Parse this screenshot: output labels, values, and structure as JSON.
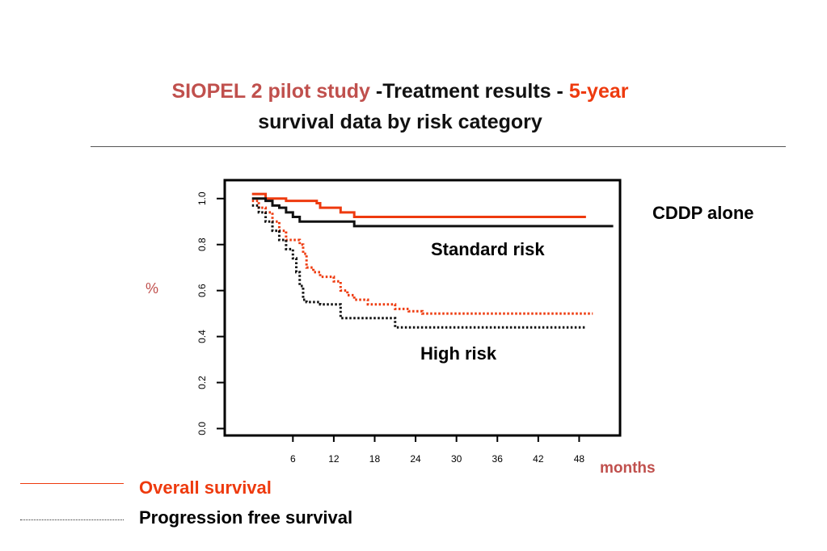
{
  "title": {
    "line1_part1": "SIOPEL 2 pilot study",
    "line1_part2": " -Treatment results - ",
    "line1_part3": "5-year",
    "line2": "survival data by risk category"
  },
  "annotations": {
    "cddp": "CDDP alone",
    "standard_risk": "Standard risk",
    "high_risk": "High risk"
  },
  "ylabel": "%",
  "xlabel": "months",
  "legend": {
    "overall_survival": "Overall survival",
    "progression_free_survival": "Progression free survival"
  },
  "colors": {
    "overall_survival": "#ee3a0e",
    "progression_free_survival": "#111111",
    "title_accent": "#c0504d"
  },
  "chart_data": {
    "type": "line",
    "step": true,
    "xlim": [
      -4,
      54
    ],
    "ylim": [
      -0.03,
      1.08
    ],
    "x_ticks": [
      6,
      12,
      18,
      24,
      30,
      36,
      42,
      48
    ],
    "y_ticks": [
      "0.0",
      "0.2",
      "0.4",
      "0.6",
      "0.8",
      "1.0"
    ],
    "y_tick_values": [
      0,
      0.2,
      0.4,
      0.6,
      0.8,
      1.0
    ],
    "series": [
      {
        "group": "Standard risk",
        "measure": "Overall survival",
        "style": "solid",
        "color": "#ee3a0e",
        "x": [
          0,
          2,
          4,
          5,
          6,
          9.5,
          10,
          13,
          15,
          49
        ],
        "y": [
          1.02,
          1.0,
          1.0,
          0.99,
          0.99,
          0.98,
          0.96,
          0.94,
          0.92,
          0.92
        ]
      },
      {
        "group": "Standard risk",
        "measure": "Progression free survival",
        "style": "solid",
        "color": "#111111",
        "x": [
          0,
          2,
          3,
          4,
          5,
          6,
          7,
          14,
          15,
          53
        ],
        "y": [
          1.0,
          0.99,
          0.97,
          0.96,
          0.94,
          0.92,
          0.9,
          0.9,
          0.88,
          0.88
        ]
      },
      {
        "group": "High risk",
        "measure": "Overall survival",
        "style": "dotted",
        "color": "#ee3a0e",
        "x": [
          0,
          1,
          2,
          3,
          4,
          5,
          7,
          7.5,
          8,
          9,
          10,
          12,
          13,
          14,
          15,
          17,
          19,
          21,
          22,
          23,
          25,
          50
        ],
        "y": [
          0.99,
          0.96,
          0.94,
          0.9,
          0.86,
          0.82,
          0.8,
          0.76,
          0.7,
          0.68,
          0.66,
          0.64,
          0.6,
          0.58,
          0.56,
          0.54,
          0.54,
          0.52,
          0.52,
          0.51,
          0.5,
          0.5
        ]
      },
      {
        "group": "High risk",
        "measure": "Progression free survival",
        "style": "dotted",
        "color": "#111111",
        "x": [
          0,
          1,
          2,
          3,
          4,
          5,
          6,
          6.5,
          7,
          7.5,
          8,
          10,
          12,
          13,
          20,
          21,
          49
        ],
        "y": [
          0.97,
          0.94,
          0.9,
          0.86,
          0.82,
          0.78,
          0.74,
          0.68,
          0.62,
          0.56,
          0.55,
          0.54,
          0.54,
          0.48,
          0.48,
          0.44,
          0.44
        ]
      }
    ]
  }
}
